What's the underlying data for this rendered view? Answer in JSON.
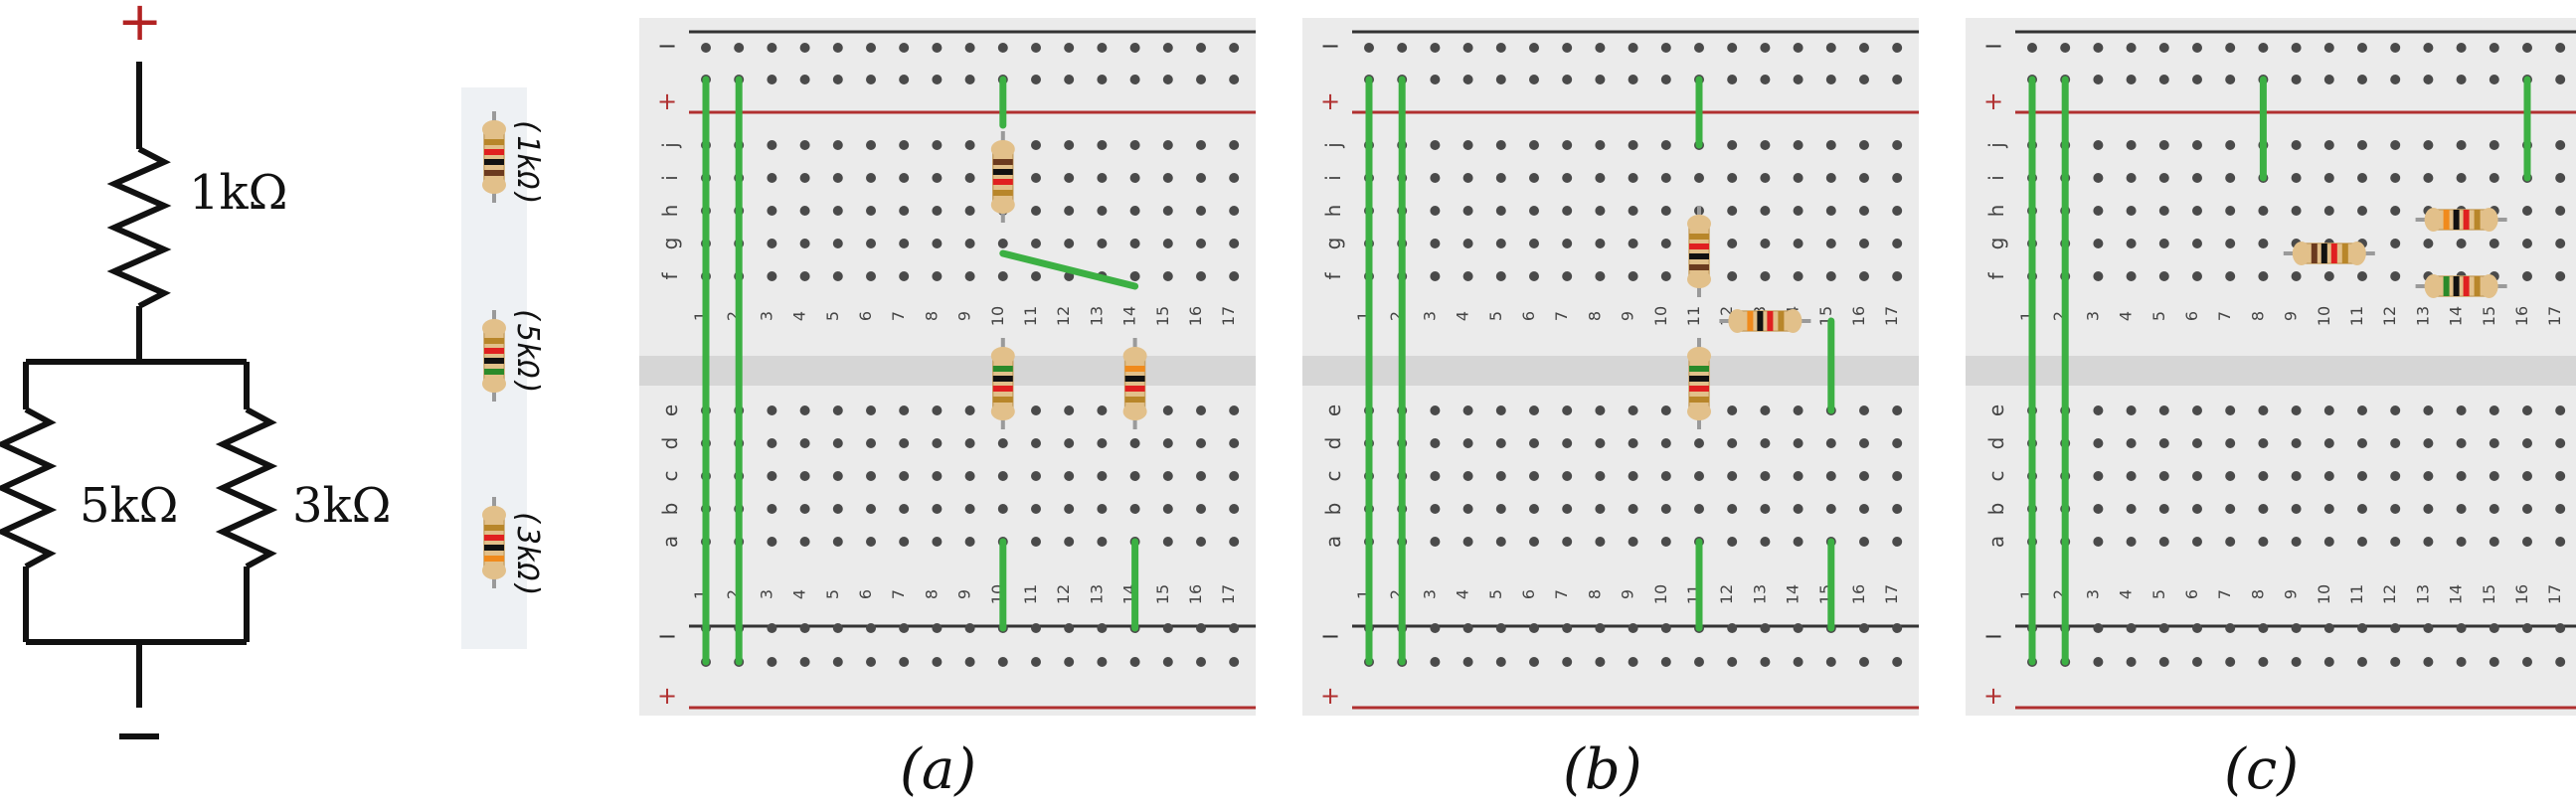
{
  "schematic": {
    "positive_terminal": "+",
    "negative_terminal": "−",
    "resistors": [
      {
        "label": "1kΩ"
      },
      {
        "label": "5kΩ"
      },
      {
        "label": "3kΩ"
      }
    ]
  },
  "legend": {
    "items": [
      {
        "label": "(1kΩ)",
        "bands": [
          "#6b3a1f",
          "#111111",
          "#e02020",
          "#b8862a"
        ]
      },
      {
        "label": "(5kΩ)",
        "bands": [
          "#2a8a2a",
          "#111111",
          "#e02020",
          "#b8862a"
        ]
      },
      {
        "label": "(3kΩ)",
        "bands": [
          "#f08a1c",
          "#111111",
          "#e02020",
          "#b8862a"
        ]
      }
    ]
  },
  "breadboard": {
    "rail_minus": "−",
    "rail_plus": "+",
    "row_letters_top": [
      "j",
      "i",
      "h",
      "g",
      "f"
    ],
    "row_letters_bottom": [
      "e",
      "d",
      "c",
      "b",
      "a"
    ],
    "column_numbers": [
      "1",
      "2",
      "3",
      "4",
      "5",
      "6",
      "7",
      "8",
      "9",
      "10",
      "11",
      "12",
      "13",
      "14",
      "15",
      "16",
      "17"
    ],
    "wire_color": "#3cb043"
  },
  "panels": [
    {
      "caption": "(a)"
    },
    {
      "caption": "(b)"
    },
    {
      "caption": "(c)"
    }
  ]
}
